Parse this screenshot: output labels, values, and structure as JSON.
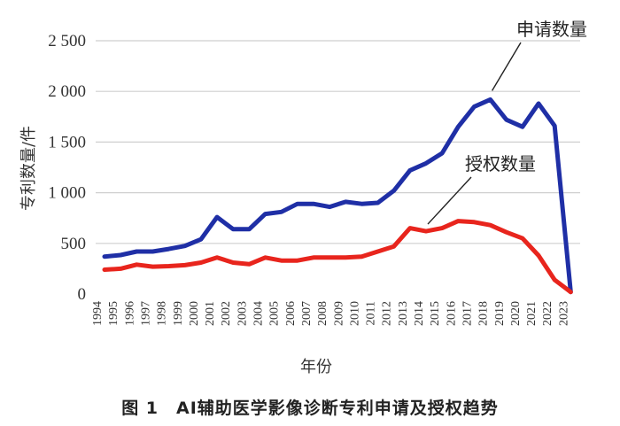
{
  "chart_data": {
    "type": "line",
    "caption": "图 1　AI辅助医学影像诊断专利申请及授权趋势",
    "xlabel": "年份",
    "ylabel": "专利数量/件",
    "x": [
      "1994",
      "1995",
      "1996",
      "1997",
      "1998",
      "1999",
      "2000",
      "2001",
      "2002",
      "2003",
      "2004",
      "2005",
      "2006",
      "2007",
      "2008",
      "2009",
      "2010",
      "2011",
      "2012",
      "2013",
      "2014",
      "2015",
      "2016",
      "2017",
      "2018",
      "2019",
      "2020",
      "2021",
      "2022",
      "2023"
    ],
    "y_ticks": [
      0,
      500,
      1000,
      1500,
      2000,
      2500
    ],
    "y_tick_labels": [
      "0",
      "500",
      "1 000",
      "1 500",
      "2 000",
      "2 500"
    ],
    "ylim": [
      0,
      2500
    ],
    "grid": true,
    "series": [
      {
        "name": "申请数量",
        "color": "#1f2fa6",
        "values": [
          370,
          385,
          420,
          420,
          445,
          475,
          540,
          760,
          640,
          640,
          790,
          810,
          890,
          890,
          860,
          910,
          890,
          900,
          1020,
          1220,
          1290,
          1390,
          1650,
          1850,
          1920,
          1720,
          1650,
          1880,
          1660,
          20
        ]
      },
      {
        "name": "授权数量",
        "color": "#e8251d",
        "values": [
          240,
          250,
          290,
          270,
          275,
          285,
          310,
          360,
          310,
          295,
          360,
          330,
          330,
          360,
          360,
          360,
          370,
          420,
          470,
          650,
          620,
          650,
          720,
          710,
          680,
          610,
          550,
          380,
          140,
          20
        ]
      }
    ]
  }
}
